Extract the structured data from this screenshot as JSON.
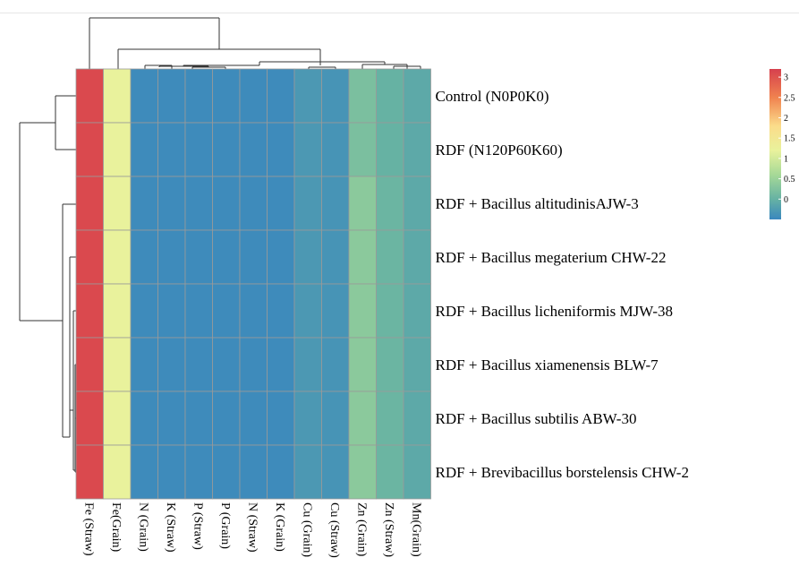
{
  "chart_data": {
    "type": "heatmap",
    "title": "",
    "columns": [
      "Fe (Straw)",
      "Fe(Grain)",
      "N (Grain)",
      "K (Straw)",
      "P (Straw)",
      "P (Grain)",
      "N (Straw)",
      "K (Grain)",
      "Cu (Grain)",
      "Cu (Straw)",
      "Zn (Grain)",
      "Zn (Straw)",
      "Mn(Grain)"
    ],
    "rows": [
      "Control (N0P0K0)",
      "RDF (N120P60K60)",
      "RDF + Bacillus altitudinisAJW-3",
      "RDF + Bacillus megaterium CHW-22",
      "RDF + Bacillus licheniformis MJW-38",
      "RDF + Bacillus xiamenensis BLW-7",
      "RDF + Bacillus subtilis ABW-30",
      "RDF + Brevibacillus borstelensis CHW-2"
    ],
    "values": [
      [
        3.1,
        1.2,
        -0.45,
        -0.45,
        -0.45,
        -0.45,
        -0.45,
        -0.45,
        -0.3,
        -0.35,
        0.2,
        0.0,
        -0.1
      ],
      [
        3.1,
        1.2,
        -0.45,
        -0.45,
        -0.45,
        -0.45,
        -0.45,
        -0.45,
        -0.3,
        -0.35,
        0.2,
        0.0,
        -0.1
      ],
      [
        3.1,
        1.2,
        -0.45,
        -0.45,
        -0.45,
        -0.45,
        -0.45,
        -0.45,
        -0.3,
        -0.35,
        0.35,
        0.05,
        -0.1
      ],
      [
        3.1,
        1.2,
        -0.45,
        -0.45,
        -0.45,
        -0.45,
        -0.45,
        -0.45,
        -0.3,
        -0.35,
        0.35,
        0.05,
        -0.1
      ],
      [
        3.1,
        1.2,
        -0.45,
        -0.45,
        -0.45,
        -0.45,
        -0.45,
        -0.45,
        -0.3,
        -0.35,
        0.35,
        0.05,
        -0.1
      ],
      [
        3.1,
        1.2,
        -0.45,
        -0.45,
        -0.45,
        -0.45,
        -0.45,
        -0.45,
        -0.3,
        -0.35,
        0.35,
        0.05,
        -0.1
      ],
      [
        3.1,
        1.2,
        -0.45,
        -0.45,
        -0.45,
        -0.45,
        -0.45,
        -0.45,
        -0.3,
        -0.35,
        0.35,
        0.05,
        -0.1
      ],
      [
        3.1,
        1.2,
        -0.45,
        -0.45,
        -0.45,
        -0.45,
        -0.45,
        -0.45,
        -0.3,
        -0.35,
        0.35,
        0.05,
        -0.1
      ]
    ],
    "colorscale": {
      "min": -0.5,
      "max": 3.2,
      "stops": [
        {
          "v": -0.5,
          "c": "#3a87be"
        },
        {
          "v": 0.0,
          "c": "#66b2a3"
        },
        {
          "v": 0.6,
          "c": "#a6d997"
        },
        {
          "v": 1.2,
          "c": "#e9f29c"
        },
        {
          "v": 1.8,
          "c": "#fbdc8a"
        },
        {
          "v": 2.5,
          "c": "#f0824f"
        },
        {
          "v": 3.2,
          "c": "#d6404e"
        }
      ]
    },
    "legend": {
      "position": "right",
      "ticks": [
        3,
        2.5,
        2,
        1.5,
        1,
        0.5,
        0
      ]
    },
    "grid": true
  }
}
